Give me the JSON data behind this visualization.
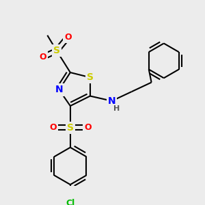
{
  "bg_color": "#ececec",
  "atom_colors": {
    "S": "#cccc00",
    "N": "#0000ff",
    "O": "#ff0000",
    "Cl": "#00bb00",
    "C": "#000000",
    "H": "#555555"
  },
  "bond_color": "#000000",
  "lw": 1.5,
  "figsize": [
    3.0,
    3.0
  ],
  "dpi": 100
}
